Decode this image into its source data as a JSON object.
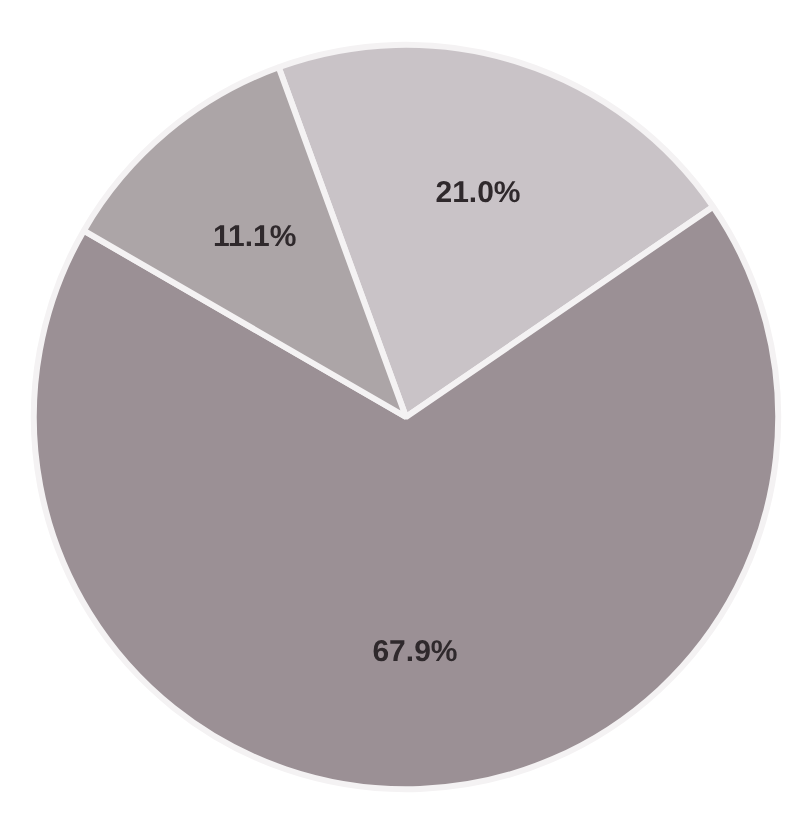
{
  "chart_data": {
    "type": "pie",
    "categories": [
      null,
      null,
      null
    ],
    "values": [
      21.0,
      67.9,
      11.1
    ],
    "colors": [
      "#c9c3c7",
      "#9b9095",
      "#aca5a7"
    ],
    "value_labels": [
      "21.0%",
      "67.9%",
      "11.1%"
    ]
  }
}
